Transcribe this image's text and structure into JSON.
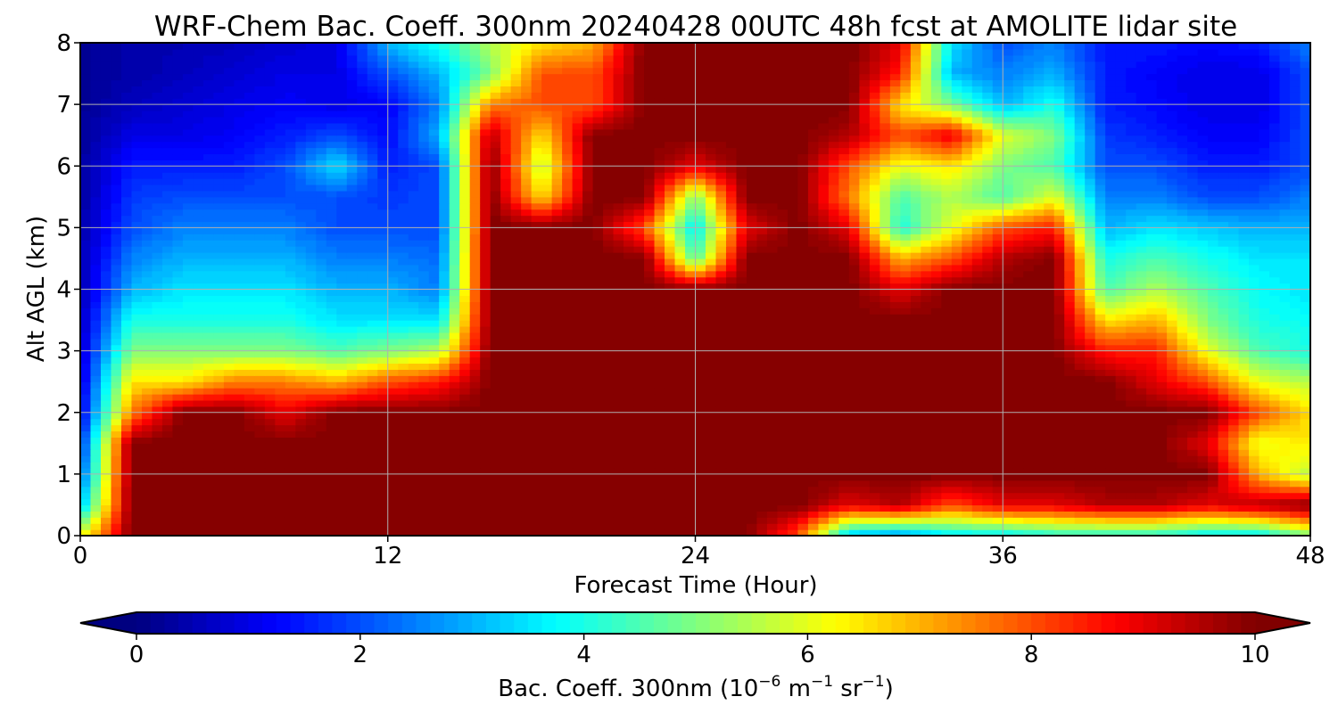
{
  "chart_data": {
    "type": "heatmap",
    "title": "WRF-Chem Bac. Coeff. 300nm  20240428 00UTC 48h fcst at AMOLITE lidar site",
    "xlabel": "Forecast Time (Hour)",
    "ylabel": "Alt AGL (km)",
    "xlim": [
      0,
      48
    ],
    "ylim": [
      0,
      8
    ],
    "xticks": [
      0,
      12,
      24,
      36,
      48
    ],
    "yticks": [
      0,
      1,
      2,
      3,
      4,
      5,
      6,
      7,
      8
    ],
    "grid": true,
    "colorbar": {
      "label_main": "Bac. Coeff. 300nm  (10",
      "label_exp1": "−6",
      "label_unit1": " m",
      "label_exp2": "−1",
      "label_unit2": " sr",
      "label_exp3": "−1",
      "label_close": ")",
      "range": [
        0,
        10
      ],
      "ticks": [
        0,
        2,
        4,
        6,
        8,
        10
      ],
      "colormap": "jet",
      "extend": "both",
      "placement": "bottom"
    },
    "times": [
      0,
      2,
      4,
      6,
      8,
      10,
      12,
      14,
      16,
      18,
      20,
      22,
      24,
      26,
      28,
      30,
      32,
      34,
      36,
      38,
      40,
      42,
      44,
      46,
      48
    ],
    "altitudes": [
      0,
      0.5,
      1,
      1.5,
      2,
      2.5,
      3,
      3.5,
      4,
      4.5,
      5,
      5.5,
      6,
      6.5,
      7,
      7.5,
      8
    ],
    "values": [
      [
        6.0,
        10,
        10,
        10,
        10,
        10,
        10,
        10,
        10,
        10,
        10,
        10,
        10,
        10,
        8.0,
        3.0,
        2.5,
        3.5,
        3.5,
        4.0,
        4.0,
        4.0,
        3.5,
        3.5,
        5.0
      ],
      [
        3.0,
        10,
        10,
        10,
        10,
        10,
        10,
        10,
        10,
        10,
        10,
        10,
        10,
        10,
        10,
        9.0,
        9.5,
        8.0,
        9.0,
        9.0,
        9.5,
        9.5,
        9.0,
        9.5,
        10
      ],
      [
        2.0,
        10,
        10,
        10,
        10,
        10,
        10,
        10,
        10,
        10,
        10,
        10,
        10,
        10,
        10,
        10,
        10,
        10,
        10,
        10,
        10,
        10,
        10,
        7.0,
        5.5
      ],
      [
        1.5,
        10,
        10,
        10,
        10,
        10,
        10,
        10,
        10,
        10,
        10,
        10,
        10,
        10,
        10,
        10,
        10,
        10,
        10,
        10,
        10,
        10,
        9.0,
        6.0,
        6.5
      ],
      [
        1.0,
        7.5,
        10,
        10,
        9.0,
        10,
        10,
        10,
        10,
        10,
        10,
        10,
        10,
        10,
        10,
        10,
        10,
        10,
        10,
        10,
        10,
        10,
        10,
        8.0,
        6.5
      ],
      [
        0.8,
        6.5,
        6.5,
        7.5,
        7.5,
        7.0,
        8.0,
        8.5,
        10,
        10,
        10,
        10,
        10,
        10,
        10,
        10,
        10,
        10,
        10,
        10,
        10,
        9.0,
        8.0,
        6.0,
        5.5
      ],
      [
        0.7,
        5.0,
        5.0,
        5.0,
        5.0,
        4.5,
        5.0,
        5.5,
        10,
        10,
        10,
        10,
        10,
        10,
        10,
        10,
        10,
        10,
        10,
        10,
        8.5,
        8.5,
        6.0,
        4.5,
        4.0
      ],
      [
        0.6,
        4.0,
        4.0,
        4.0,
        4.0,
        3.5,
        3.5,
        3.5,
        10,
        10,
        10,
        10,
        10,
        10,
        10,
        10,
        10,
        10,
        10,
        10,
        6.5,
        7.0,
        5.0,
        4.0,
        3.8
      ],
      [
        0.5,
        3.0,
        3.5,
        3.5,
        3.5,
        3.0,
        3.0,
        2.5,
        10,
        10,
        10,
        10,
        10,
        10,
        10,
        10,
        9.0,
        10,
        10,
        10,
        4.5,
        5.5,
        4.5,
        3.8,
        3.5
      ],
      [
        0.5,
        2.5,
        3.0,
        3.0,
        3.0,
        2.5,
        2.5,
        2.3,
        10,
        10,
        10,
        10,
        4.5,
        10,
        10,
        10,
        7.0,
        8.0,
        9.5,
        10,
        4.0,
        4.5,
        4.0,
        3.5,
        3.5
      ],
      [
        0.4,
        2.0,
        2.5,
        2.5,
        2.5,
        2.0,
        2.0,
        2.0,
        10,
        10,
        10,
        8.0,
        3.5,
        9.0,
        10,
        9.0,
        4.0,
        6.0,
        8.0,
        8.5,
        3.0,
        3.5,
        3.2,
        3.0,
        3.0
      ],
      [
        0.3,
        1.8,
        2.0,
        2.0,
        2.0,
        2.0,
        1.8,
        2.0,
        10,
        6.5,
        10,
        10,
        5.0,
        10,
        10,
        7.5,
        4.5,
        5.5,
        4.5,
        6.0,
        2.5,
        2.5,
        2.0,
        2.0,
        2.5
      ],
      [
        0.3,
        1.5,
        1.5,
        1.5,
        2.0,
        3.5,
        1.5,
        2.0,
        10,
        5.5,
        10,
        10,
        9.0,
        10,
        10,
        8.0,
        6.0,
        6.5,
        5.0,
        4.5,
        2.0,
        2.0,
        1.5,
        1.5,
        2.0
      ],
      [
        0.2,
        1.0,
        1.0,
        1.2,
        1.5,
        2.0,
        1.3,
        3.0,
        9.5,
        6.5,
        10,
        10,
        10,
        10,
        10,
        9.5,
        8.0,
        9.0,
        6.0,
        5.0,
        1.8,
        1.5,
        1.2,
        1.2,
        2.0
      ],
      [
        0.2,
        0.6,
        0.8,
        1.0,
        1.2,
        1.0,
        1.2,
        2.5,
        7.5,
        8.0,
        8.0,
        10,
        10,
        10,
        10,
        10,
        6.5,
        5.0,
        3.0,
        4.0,
        1.5,
        1.3,
        1.0,
        1.0,
        2.0
      ],
      [
        0.2,
        0.4,
        0.6,
        0.8,
        1.0,
        1.0,
        2.0,
        3.0,
        5.0,
        8.0,
        8.0,
        10,
        10,
        10,
        10,
        10,
        8.5,
        3.0,
        2.5,
        3.0,
        1.5,
        1.2,
        1.0,
        1.0,
        2.0
      ],
      [
        0.2,
        0.4,
        0.5,
        0.6,
        0.8,
        1.0,
        3.0,
        4.0,
        5.5,
        6.5,
        7.0,
        10,
        10,
        10,
        10,
        10,
        9.0,
        3.5,
        2.0,
        2.5,
        1.5,
        1.5,
        1.3,
        1.5,
        2.5
      ]
    ]
  }
}
